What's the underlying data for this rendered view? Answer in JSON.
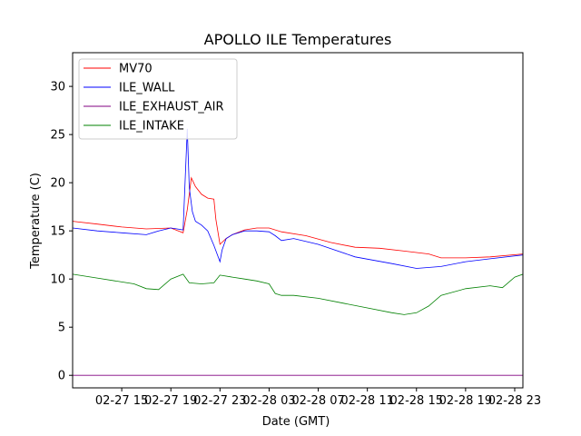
{
  "chart_data": {
    "type": "line",
    "title": "APOLLO ILE Temperatures",
    "xlabel": "Date (GMT)",
    "ylabel": "Temperature (C)",
    "x_unit": "hours",
    "xlim": [
      "2027-02-27 11:00",
      "2027-02-28 23:40"
    ],
    "ylim": [
      -1.3,
      33.5
    ],
    "yticks": [
      0,
      5,
      10,
      15,
      20,
      25,
      30
    ],
    "xticks": [
      {
        "x": "2027-02-27 15:00",
        "label": "02-27 15"
      },
      {
        "x": "2027-02-27 19:00",
        "label": "02-27 19"
      },
      {
        "x": "2027-02-27 23:00",
        "label": "02-27 23"
      },
      {
        "x": "2027-02-28 03:00",
        "label": "02-28 03"
      },
      {
        "x": "2027-02-28 07:00",
        "label": "02-28 07"
      },
      {
        "x": "2027-02-28 11:00",
        "label": "02-28 11"
      },
      {
        "x": "2027-02-28 15:00",
        "label": "02-28 15"
      },
      {
        "x": "2027-02-28 19:00",
        "label": "02-28 19"
      },
      {
        "x": "2027-02-28 23:00",
        "label": "02-28 23"
      }
    ],
    "legend_position": "top-left",
    "series": [
      {
        "name": "MV70",
        "color": "#ff0000",
        "x": [
          "2027-02-27 11:00",
          "2027-02-27 13:00",
          "2027-02-27 15:00",
          "2027-02-27 17:00",
          "2027-02-27 19:00",
          "2027-02-27 20:00",
          "2027-02-27 20:20",
          "2027-02-27 20:40",
          "2027-02-27 21:00",
          "2027-02-27 21:30",
          "2027-02-27 22:00",
          "2027-02-27 22:30",
          "2027-02-27 22:40",
          "2027-02-27 23:00",
          "2027-02-27 23:30",
          "2027-02-28 00:00",
          "2027-02-28 01:00",
          "2027-02-28 02:00",
          "2027-02-28 03:00",
          "2027-02-28 04:00",
          "2027-02-28 06:00",
          "2027-02-28 08:00",
          "2027-02-28 10:00",
          "2027-02-28 12:00",
          "2027-02-28 14:00",
          "2027-02-28 16:00",
          "2027-02-28 17:00",
          "2027-02-28 19:00",
          "2027-02-28 21:00",
          "2027-02-28 23:40"
        ],
        "y": [
          16.0,
          15.7,
          15.4,
          15.2,
          15.3,
          14.8,
          17.2,
          20.5,
          19.6,
          18.8,
          18.4,
          18.3,
          16.2,
          13.6,
          14.2,
          14.6,
          15.1,
          15.3,
          15.3,
          14.9,
          14.5,
          13.8,
          13.3,
          13.2,
          12.9,
          12.6,
          12.2,
          12.2,
          12.3,
          12.6
        ]
      },
      {
        "name": "ILE_WALL",
        "color": "#0000ff",
        "x": [
          "2027-02-27 11:00",
          "2027-02-27 13:00",
          "2027-02-27 15:00",
          "2027-02-27 17:00",
          "2027-02-27 18:00",
          "2027-02-27 19:00",
          "2027-02-27 19:30",
          "2027-02-27 20:00",
          "2027-02-27 20:20",
          "2027-02-27 20:30",
          "2027-02-27 20:45",
          "2027-02-27 21:00",
          "2027-02-27 21:30",
          "2027-02-27 22:00",
          "2027-02-27 22:30",
          "2027-02-27 23:00",
          "2027-02-27 23:10",
          "2027-02-27 23:30",
          "2027-02-28 00:00",
          "2027-02-28 01:00",
          "2027-02-28 02:00",
          "2027-02-28 03:00",
          "2027-02-28 03:30",
          "2027-02-28 04:00",
          "2027-02-28 05:00",
          "2027-02-28 07:00",
          "2027-02-28 10:00",
          "2027-02-28 13:00",
          "2027-02-28 15:00",
          "2027-02-28 17:00",
          "2027-02-28 19:00",
          "2027-02-28 21:00",
          "2027-02-28 23:40"
        ],
        "y": [
          15.3,
          15.0,
          14.8,
          14.6,
          15.0,
          15.3,
          15.2,
          15.1,
          25.6,
          19.5,
          17.0,
          16.0,
          15.6,
          15.0,
          13.5,
          11.8,
          13.0,
          14.2,
          14.6,
          15.0,
          15.0,
          14.9,
          14.5,
          14.0,
          14.2,
          13.6,
          12.3,
          11.6,
          11.1,
          11.3,
          11.8,
          12.1,
          12.5
        ]
      },
      {
        "name": "ILE_EXHAUST_AIR",
        "color": "#800080",
        "x": [
          "2027-02-27 11:00",
          "2027-02-28 23:40"
        ],
        "y": [
          0.0,
          0.0
        ]
      },
      {
        "name": "ILE_INTAKE",
        "color": "#008000",
        "x": [
          "2027-02-27 11:00",
          "2027-02-27 13:00",
          "2027-02-27 15:00",
          "2027-02-27 16:00",
          "2027-02-27 17:00",
          "2027-02-27 18:00",
          "2027-02-27 19:00",
          "2027-02-27 20:00",
          "2027-02-27 20:30",
          "2027-02-27 21:30",
          "2027-02-27 22:30",
          "2027-02-27 23:00",
          "2027-02-28 00:00",
          "2027-02-28 01:00",
          "2027-02-28 02:00",
          "2027-02-28 03:00",
          "2027-02-28 03:30",
          "2027-02-28 04:00",
          "2027-02-28 05:00",
          "2027-02-28 07:00",
          "2027-02-28 09:00",
          "2027-02-28 11:00",
          "2027-02-28 13:00",
          "2027-02-28 14:00",
          "2027-02-28 15:00",
          "2027-02-28 16:00",
          "2027-02-28 17:00",
          "2027-02-28 19:00",
          "2027-02-28 21:00",
          "2027-02-28 22:00",
          "2027-02-28 23:00",
          "2027-02-28 23:40"
        ],
        "y": [
          10.5,
          10.1,
          9.7,
          9.5,
          9.0,
          8.9,
          10.0,
          10.5,
          9.6,
          9.5,
          9.6,
          10.4,
          10.2,
          10.0,
          9.8,
          9.5,
          8.5,
          8.3,
          8.3,
          8.0,
          7.5,
          7.0,
          6.5,
          6.3,
          6.5,
          7.2,
          8.3,
          9.0,
          9.3,
          9.1,
          10.2,
          10.5
        ]
      }
    ]
  }
}
